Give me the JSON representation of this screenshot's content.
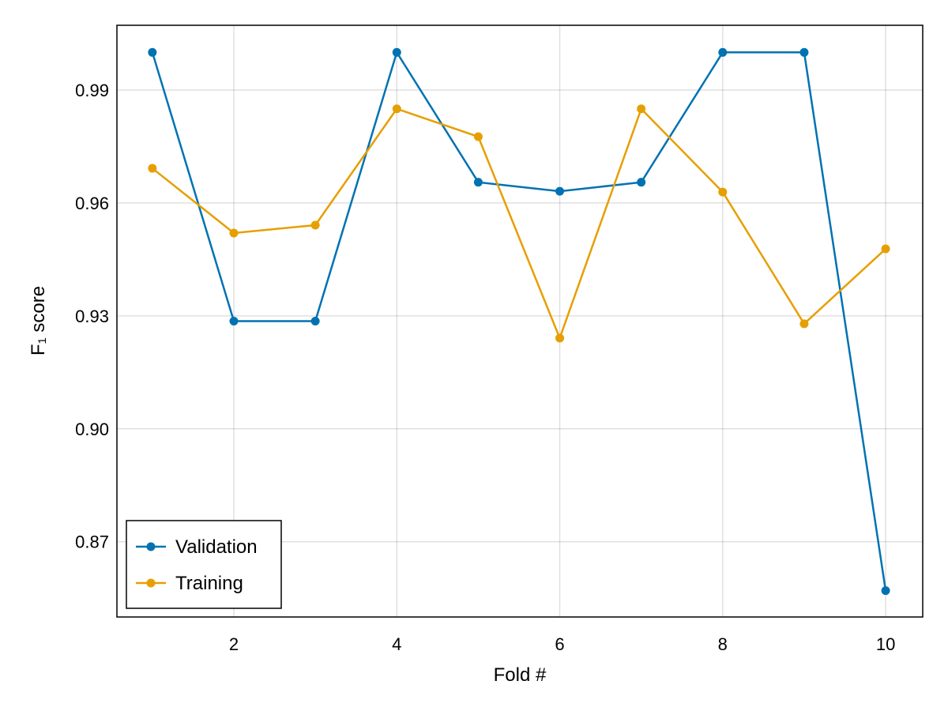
{
  "chart_data": {
    "type": "line",
    "title": "",
    "xlabel": "Fold #",
    "ylabel": "F₁ score",
    "x": [
      1,
      2,
      3,
      4,
      5,
      6,
      7,
      8,
      9,
      10
    ],
    "xlim": [
      0.565,
      10.455
    ],
    "ylim": [
      0.85,
      1.0072
    ],
    "xticks": [
      2,
      4,
      6,
      8,
      10
    ],
    "xtick_labels": [
      "2",
      "4",
      "6",
      "8",
      "10"
    ],
    "yticks": [
      0.87,
      0.9,
      0.93,
      0.96,
      0.99
    ],
    "ytick_labels": [
      "0.87",
      "0.90",
      "0.93",
      "0.96",
      "0.99"
    ],
    "grid": true,
    "legend_position": "bottom-left",
    "series": [
      {
        "name": "Validation",
        "color": "#0072b2",
        "values": [
          1.0,
          0.9286,
          0.9286,
          1.0,
          0.9655,
          0.9631,
          0.9655,
          1.0,
          1.0,
          0.857
        ]
      },
      {
        "name": "Training",
        "color": "#e69f00",
        "values": [
          0.9692,
          0.952,
          0.9541,
          0.985,
          0.9776,
          0.9241,
          0.985,
          0.9629,
          0.9279,
          0.9478
        ]
      }
    ]
  }
}
